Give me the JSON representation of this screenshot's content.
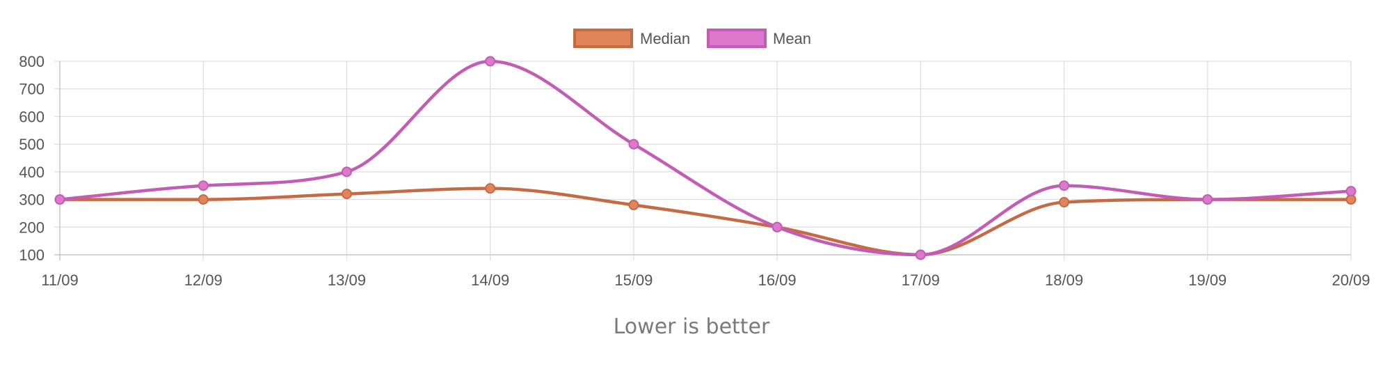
{
  "caption": "Lower is better",
  "chart_data": {
    "type": "line",
    "categories": [
      "11/09",
      "12/09",
      "13/09",
      "14/09",
      "15/09",
      "16/09",
      "17/09",
      "18/09",
      "19/09",
      "20/09"
    ],
    "series": [
      {
        "name": "Median",
        "values": [
          300,
          300,
          320,
          340,
          280,
          200,
          100,
          290,
          300,
          300
        ],
        "stroke": "#c46b45",
        "fill": "#e0845a"
      },
      {
        "name": "Mean",
        "values": [
          300,
          350,
          400,
          800,
          500,
          200,
          100,
          350,
          300,
          330
        ],
        "stroke": "#c35cb5",
        "fill": "#dd79cc"
      }
    ],
    "yticks": [
      100,
      200,
      300,
      400,
      500,
      600,
      700,
      800
    ],
    "ylim": [
      100,
      800
    ],
    "grid": true,
    "legend_position": "top-center",
    "line_style": "smooth"
  }
}
